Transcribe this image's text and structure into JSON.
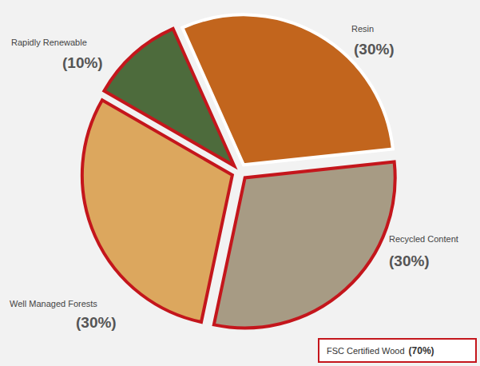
{
  "chart_data": {
    "type": "pie",
    "categories": [
      "Resin",
      "Recycled Content",
      "Well Managed Forests",
      "Rapidly Renewable"
    ],
    "values": [
      30,
      30,
      30,
      10
    ],
    "value_labels": [
      "(30%)",
      "(30%)",
      "(30%)",
      "(10%)"
    ],
    "colors": [
      "#c2651d",
      "#a79b84",
      "#dca75e",
      "#4d6b3c"
    ],
    "data_labels": true,
    "annotations": [
      {
        "text": "FSC Certified Wood",
        "value": 70,
        "label": "(70%)"
      }
    ]
  }
}
